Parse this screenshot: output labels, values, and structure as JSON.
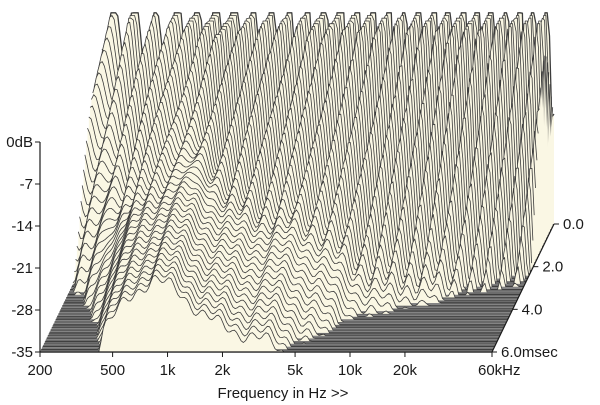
{
  "chart_data": {
    "type": "waterfall",
    "xlabel": "Frequency in Hz >>",
    "x_scale": "log",
    "x_ticks": [
      "200",
      "500",
      "1k",
      "2k",
      "5k",
      "10k",
      "20k",
      "60kHz"
    ],
    "x_tick_values_hz": [
      200,
      500,
      1000,
      2000,
      5000,
      10000,
      20000,
      60000
    ],
    "xlim_hz": [
      200,
      60000
    ],
    "y_ticks": [
      "0dB",
      "-7",
      "-14",
      "-21",
      "-28",
      "-35"
    ],
    "y_tick_values_db": [
      0,
      -7,
      -14,
      -21,
      -28,
      -35
    ],
    "ylim_db": [
      -35,
      0
    ],
    "time_ticks": [
      "0.0",
      "2.0",
      "4.0",
      "6.0msec"
    ],
    "time_tick_values_ms": [
      0.0,
      2.0,
      4.0,
      6.0
    ],
    "time_range_ms": [
      0.0,
      6.0
    ],
    "grid": false,
    "colors": {
      "surface_fill": "#faf7e4",
      "trace_line": "#3c3c3c",
      "floor_dark": "#444444",
      "floor_light": "#b0b0b0",
      "axis": "#1a1a1a"
    }
  }
}
